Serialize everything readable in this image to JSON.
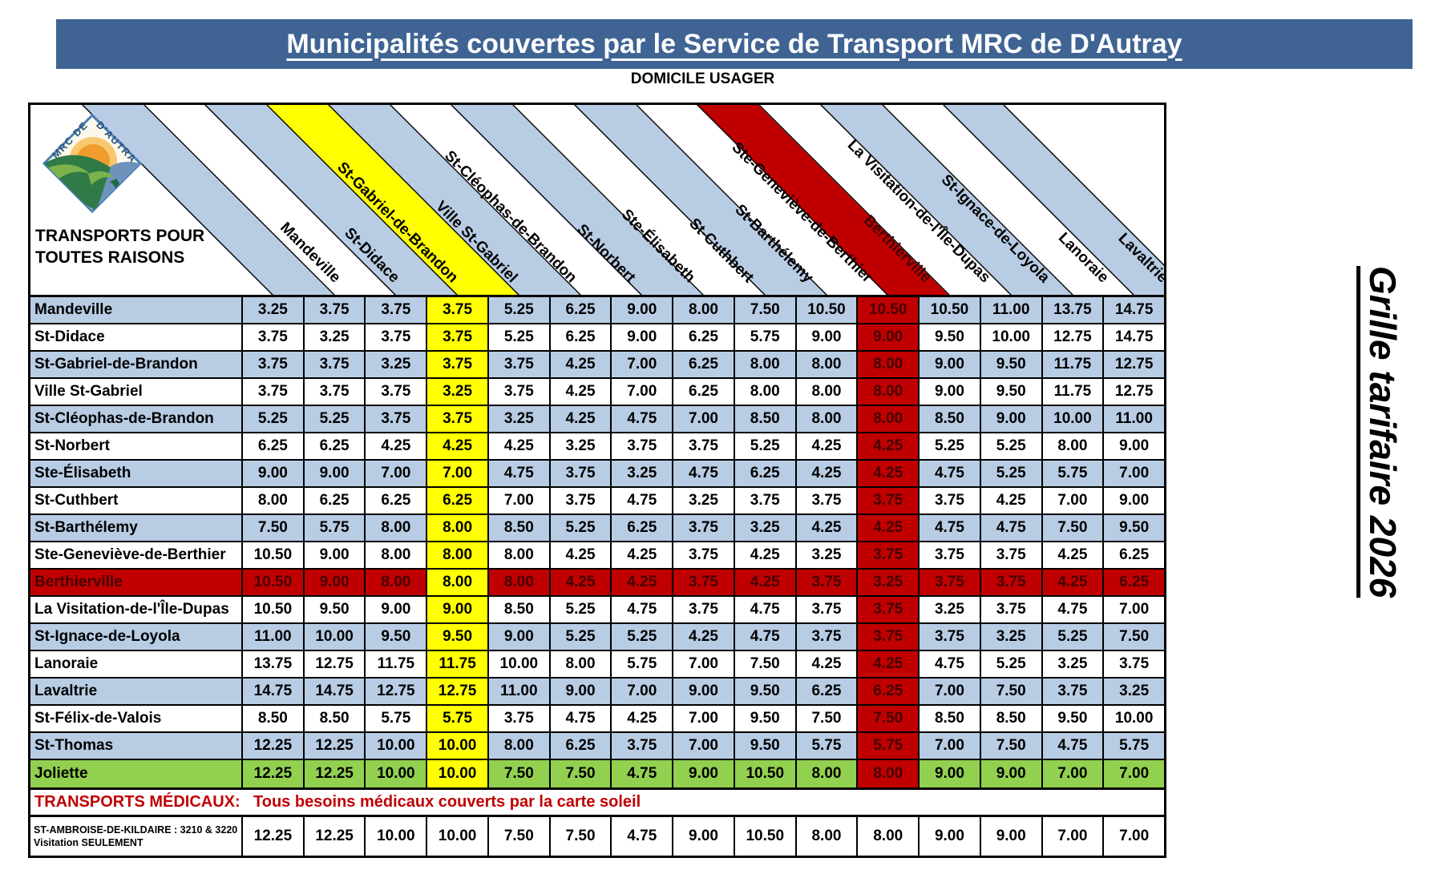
{
  "banner": {
    "title": "Municipalités couvertes par le Service de Transport MRC de D'Autray"
  },
  "domicile_label": "DOMICILE USAGER",
  "corner": {
    "line1": "TRANSPORTS POUR",
    "line2": "TOUTES RAISONS"
  },
  "logo": {
    "arc_left": "MRC DE",
    "arc_right": "D'AUTRAY"
  },
  "side_label": "Grille tarifaire 2026",
  "colors": {
    "banner_blue": "#3f6494",
    "light_blue": "#b8cce4",
    "yellow": "#ffff00",
    "red": "#c00000",
    "green": "#92d050",
    "white": "#ffffff",
    "dark_red_text": "#440000",
    "medical_red": "#c00000"
  },
  "columns": [
    {
      "name": "Mandeville",
      "band": "lb"
    },
    {
      "name": "St-Didace",
      "band": "white"
    },
    {
      "name": "St-Gabriel-de-Brandon",
      "band": "lb"
    },
    {
      "name": "Ville St-Gabriel",
      "band": "yellow"
    },
    {
      "name": "St-Cléophas-de-Brandon",
      "band": "lb"
    },
    {
      "name": "St-Norbert",
      "band": "white"
    },
    {
      "name": "Ste-Élisabeth",
      "band": "lb"
    },
    {
      "name": "St-Cuthbert",
      "band": "white"
    },
    {
      "name": "St-Barthélemy",
      "band": "lb"
    },
    {
      "name": "Ste-Geneviève-de-Berthier",
      "band": "white"
    },
    {
      "name": "Berthierville",
      "band": "red"
    },
    {
      "name": "La Visitation-de-l'Île-Dupas",
      "band": "white"
    },
    {
      "name": "St-Ignace-de-Loyola",
      "band": "lb"
    },
    {
      "name": "Lanoraie",
      "band": "white"
    },
    {
      "name": "Lavaltrie",
      "band": "lb"
    }
  ],
  "rows": [
    {
      "name": "Mandeville",
      "bg": "lb",
      "values": [
        "3.25",
        "3.75",
        "3.75",
        "3.75",
        "5.25",
        "6.25",
        "9.00",
        "8.00",
        "7.50",
        "10.50",
        "10.50",
        "10.50",
        "11.00",
        "13.75",
        "14.75"
      ]
    },
    {
      "name": "St-Didace",
      "bg": "white",
      "values": [
        "3.75",
        "3.25",
        "3.75",
        "3.75",
        "5.25",
        "6.25",
        "9.00",
        "6.25",
        "5.75",
        "9.00",
        "9.00",
        "9.50",
        "10.00",
        "12.75",
        "14.75"
      ]
    },
    {
      "name": "St-Gabriel-de-Brandon",
      "bg": "lb",
      "values": [
        "3.75",
        "3.75",
        "3.25",
        "3.75",
        "3.75",
        "4.25",
        "7.00",
        "6.25",
        "8.00",
        "8.00",
        "8.00",
        "9.00",
        "9.50",
        "11.75",
        "12.75"
      ]
    },
    {
      "name": "Ville St-Gabriel",
      "bg": "white",
      "values": [
        "3.75",
        "3.75",
        "3.75",
        "3.25",
        "3.75",
        "4.25",
        "7.00",
        "6.25",
        "8.00",
        "8.00",
        "8.00",
        "9.00",
        "9.50",
        "11.75",
        "12.75"
      ]
    },
    {
      "name": "St-Cléophas-de-Brandon",
      "bg": "lb",
      "values": [
        "5.25",
        "5.25",
        "3.75",
        "3.75",
        "3.25",
        "4.25",
        "4.75",
        "7.00",
        "8.50",
        "8.00",
        "8.00",
        "8.50",
        "9.00",
        "10.00",
        "11.00"
      ]
    },
    {
      "name": "St-Norbert",
      "bg": "white",
      "values": [
        "6.25",
        "6.25",
        "4.25",
        "4.25",
        "4.25",
        "3.25",
        "3.75",
        "3.75",
        "5.25",
        "4.25",
        "4.25",
        "5.25",
        "5.25",
        "8.00",
        "9.00"
      ]
    },
    {
      "name": "Ste-Élisabeth",
      "bg": "lb",
      "values": [
        "9.00",
        "9.00",
        "7.00",
        "7.00",
        "4.75",
        "3.75",
        "3.25",
        "4.75",
        "6.25",
        "4.25",
        "4.25",
        "4.75",
        "5.25",
        "5.75",
        "7.00"
      ]
    },
    {
      "name": "St-Cuthbert",
      "bg": "white",
      "values": [
        "8.00",
        "6.25",
        "6.25",
        "6.25",
        "7.00",
        "3.75",
        "4.75",
        "3.25",
        "3.75",
        "3.75",
        "3.75",
        "3.75",
        "4.25",
        "7.00",
        "9.00"
      ]
    },
    {
      "name": "St-Barthélemy",
      "bg": "lb",
      "values": [
        "7.50",
        "5.75",
        "8.00",
        "8.00",
        "8.50",
        "5.25",
        "6.25",
        "3.75",
        "3.25",
        "4.25",
        "4.25",
        "4.75",
        "4.75",
        "7.50",
        "9.50"
      ]
    },
    {
      "name": "Ste-Geneviève-de-Berthier",
      "bg": "white",
      "values": [
        "10.50",
        "9.00",
        "8.00",
        "8.00",
        "8.00",
        "4.25",
        "4.25",
        "3.75",
        "4.25",
        "3.25",
        "3.75",
        "3.75",
        "3.75",
        "4.25",
        "6.25"
      ]
    },
    {
      "name": "Berthierville",
      "bg": "red",
      "values": [
        "10.50",
        "9.00",
        "8.00",
        "8.00",
        "8.00",
        "4.25",
        "4.25",
        "3.75",
        "4.25",
        "3.75",
        "3.25",
        "3.75",
        "3.75",
        "4.25",
        "6.25"
      ]
    },
    {
      "name": "La Visitation-de-l'Île-Dupas",
      "bg": "white",
      "values": [
        "10.50",
        "9.50",
        "9.00",
        "9.00",
        "8.50",
        "5.25",
        "4.75",
        "3.75",
        "4.75",
        "3.75",
        "3.75",
        "3.25",
        "3.75",
        "4.75",
        "7.00"
      ]
    },
    {
      "name": "St-Ignace-de-Loyola",
      "bg": "lb",
      "values": [
        "11.00",
        "10.00",
        "9.50",
        "9.50",
        "9.00",
        "5.25",
        "5.25",
        "4.25",
        "4.75",
        "3.75",
        "3.75",
        "3.75",
        "3.25",
        "5.25",
        "7.50"
      ]
    },
    {
      "name": "Lanoraie",
      "bg": "white",
      "values": [
        "13.75",
        "12.75",
        "11.75",
        "11.75",
        "10.00",
        "8.00",
        "5.75",
        "7.00",
        "7.50",
        "4.25",
        "4.25",
        "4.75",
        "5.25",
        "3.25",
        "3.75"
      ]
    },
    {
      "name": "Lavaltrie",
      "bg": "lb",
      "values": [
        "14.75",
        "14.75",
        "12.75",
        "12.75",
        "11.00",
        "9.00",
        "7.00",
        "9.00",
        "9.50",
        "6.25",
        "6.25",
        "7.00",
        "7.50",
        "3.75",
        "3.25"
      ]
    },
    {
      "name": "St-Félix-de-Valois",
      "bg": "white",
      "values": [
        "8.50",
        "8.50",
        "5.75",
        "5.75",
        "3.75",
        "4.75",
        "4.25",
        "7.00",
        "9.50",
        "7.50",
        "7.50",
        "8.50",
        "8.50",
        "9.50",
        "10.00"
      ]
    },
    {
      "name": "St-Thomas",
      "bg": "lb",
      "values": [
        "12.25",
        "12.25",
        "10.00",
        "10.00",
        "8.00",
        "6.25",
        "3.75",
        "7.00",
        "9.50",
        "5.75",
        "5.75",
        "7.00",
        "7.50",
        "4.75",
        "5.75"
      ]
    },
    {
      "name": "Joliette",
      "bg": "green",
      "values": [
        "12.25",
        "12.25",
        "10.00",
        "10.00",
        "7.50",
        "7.50",
        "4.75",
        "9.00",
        "10.50",
        "8.00",
        "8.00",
        "9.00",
        "9.00",
        "7.00",
        "7.00"
      ]
    }
  ],
  "medical": {
    "label": "TRANSPORTS MÉDICAUX:",
    "note": "Tous besoins médicaux couverts par la carte soleil"
  },
  "ambroise": {
    "line1": "ST-AMBROISE-DE-KILDAIRE : 3210 & 3220",
    "line2": "Visitation SEULEMENT",
    "values": [
      "12.25",
      "12.25",
      "10.00",
      "10.00",
      "7.50",
      "7.50",
      "4.75",
      "9.00",
      "10.50",
      "8.00",
      "8.00",
      "9.00",
      "9.00",
      "7.00",
      "7.00"
    ]
  }
}
